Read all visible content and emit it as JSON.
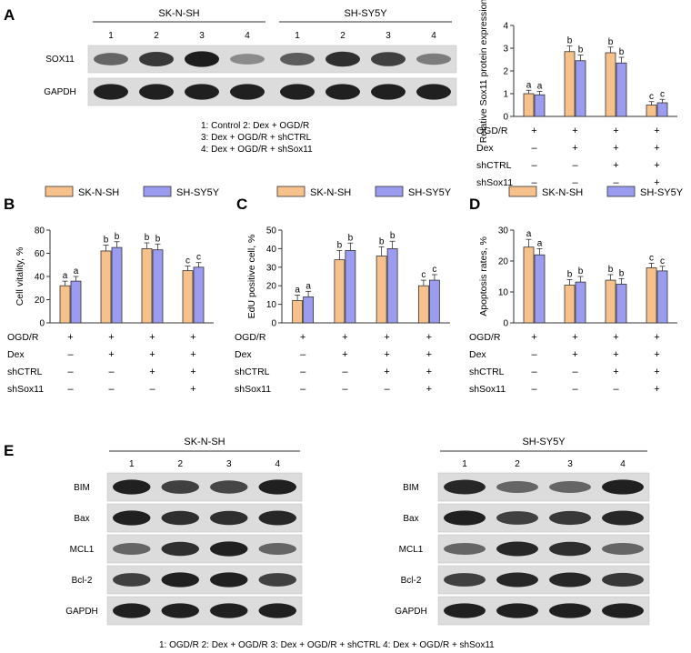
{
  "panels": {
    "A": {
      "letter": "A"
    },
    "B": {
      "letter": "B"
    },
    "C": {
      "letter": "C"
    },
    "D": {
      "letter": "D"
    },
    "E": {
      "letter": "E"
    }
  },
  "blot_A": {
    "cell_lines": [
      "SK-N-SH",
      "SH-SY5Y"
    ],
    "lanes": [
      "1",
      "2",
      "3",
      "4"
    ],
    "rows": [
      "SOX11",
      "GAPDH"
    ],
    "legend_lines": [
      "1: Control     2: Dex + OGD/R",
      "3: Dex + OGD/R + shCTRL",
      "4: Dex + OGD/R + shSox11"
    ],
    "band_intensity": {
      "SOX11": [
        [
          0.45,
          0.75,
          0.92,
          0.2
        ],
        [
          0.5,
          0.8,
          0.7,
          0.3
        ]
      ],
      "GAPDH": [
        [
          0.9,
          0.9,
          0.9,
          0.9
        ],
        [
          0.9,
          0.9,
          0.9,
          0.9
        ]
      ]
    }
  },
  "blot_E": {
    "lanes": [
      "1",
      "2",
      "3",
      "4"
    ],
    "rows": [
      "BIM",
      "Bax",
      "MCL1",
      "Bcl-2",
      "GAPDH"
    ],
    "left_title": "SK-N-SH",
    "right_title": "SH-SY5Y",
    "legend": "1: OGD/R        2: Dex + OGD/R        3: Dex + OGD/R + shCTRL        4: Dex + OGD/R + shSox11",
    "band_intensity": {
      "left": {
        "BIM": [
          0.9,
          0.7,
          0.65,
          0.9
        ],
        "Bax": [
          0.9,
          0.8,
          0.8,
          0.85
        ],
        "MCL1": [
          0.45,
          0.8,
          0.9,
          0.45
        ],
        "Bcl-2": [
          0.7,
          0.9,
          0.9,
          0.7
        ],
        "GAPDH": [
          0.9,
          0.9,
          0.9,
          0.9
        ]
      },
      "right": {
        "BIM": [
          0.85,
          0.45,
          0.45,
          0.9
        ],
        "Bax": [
          0.9,
          0.7,
          0.75,
          0.85
        ],
        "MCL1": [
          0.45,
          0.85,
          0.8,
          0.45
        ],
        "Bcl-2": [
          0.7,
          0.85,
          0.85,
          0.75
        ],
        "GAPDH": [
          0.9,
          0.9,
          0.9,
          0.9
        ]
      }
    }
  },
  "treatment_table": {
    "rows": [
      "OGD/R",
      "Dex",
      "shCTRL",
      "shSox11"
    ],
    "values": [
      [
        "+",
        "+",
        "+",
        "+"
      ],
      [
        "–",
        "+",
        "+",
        "+"
      ],
      [
        "–",
        "–",
        "+",
        "+"
      ],
      [
        "–",
        "–",
        "–",
        "+"
      ]
    ]
  },
  "colors": {
    "sk": "#F7C18B",
    "sh": "#9B9BF0",
    "edge": "#333333"
  },
  "chart_data": [
    {
      "type": "bar",
      "panel": "A",
      "ylabel": "Relative Sox11 protein expression",
      "ylim": [
        0,
        4
      ],
      "yticks": [
        0,
        1,
        2,
        3,
        4
      ],
      "categories": [
        "1",
        "2",
        "3",
        "4"
      ],
      "series": [
        {
          "name": "SK-N-SH",
          "values": [
            1.0,
            2.85,
            2.8,
            0.5
          ],
          "errors": [
            0.15,
            0.25,
            0.25,
            0.15
          ]
        },
        {
          "name": "SH-SY5Y",
          "values": [
            0.95,
            2.45,
            2.35,
            0.6
          ],
          "errors": [
            0.15,
            0.25,
            0.25,
            0.15
          ]
        }
      ],
      "letters": [
        [
          "a",
          "b",
          "b",
          "c"
        ],
        [
          "a",
          "b",
          "b",
          "c"
        ]
      ]
    },
    {
      "type": "bar",
      "panel": "B",
      "ylabel": "Cell vitality, %",
      "ylim": [
        0,
        80
      ],
      "yticks": [
        0,
        20,
        40,
        60,
        80
      ],
      "categories": [
        "1",
        "2",
        "3",
        "4"
      ],
      "series": [
        {
          "name": "SK-N-SH",
          "values": [
            32,
            62,
            64,
            45
          ],
          "errors": [
            4,
            5,
            5,
            4
          ]
        },
        {
          "name": "SH-SY5Y",
          "values": [
            36,
            65,
            63,
            48
          ],
          "errors": [
            4,
            5,
            5,
            4
          ]
        }
      ],
      "letters": [
        [
          "a",
          "b",
          "b",
          "c"
        ],
        [
          "a",
          "b",
          "b",
          "c"
        ]
      ]
    },
    {
      "type": "bar",
      "panel": "C",
      "ylabel": "EdU positive cell, %",
      "ylim": [
        0,
        50
      ],
      "yticks": [
        0,
        10,
        20,
        30,
        40,
        50
      ],
      "categories": [
        "1",
        "2",
        "3",
        "4"
      ],
      "series": [
        {
          "name": "SK-N-SH",
          "values": [
            12,
            34,
            36,
            20
          ],
          "errors": [
            3,
            5,
            5,
            3
          ]
        },
        {
          "name": "SH-SY5Y",
          "values": [
            14,
            39,
            40,
            23
          ],
          "errors": [
            3,
            4,
            4,
            3
          ]
        }
      ],
      "letters": [
        [
          "a",
          "b",
          "b",
          "c"
        ],
        [
          "a",
          "b",
          "b",
          "c"
        ]
      ]
    },
    {
      "type": "bar",
      "panel": "D",
      "ylabel": "Apoptosis rates, %",
      "ylim": [
        0,
        30
      ],
      "yticks": [
        0,
        10,
        20,
        30
      ],
      "categories": [
        "1",
        "2",
        "3",
        "4"
      ],
      "series": [
        {
          "name": "SK-N-SH",
          "values": [
            24.5,
            12.2,
            13.8,
            17.8
          ],
          "errors": [
            2.5,
            1.8,
            1.8,
            1.5
          ]
        },
        {
          "name": "SH-SY5Y",
          "values": [
            22.0,
            13.2,
            12.5,
            16.8
          ],
          "errors": [
            2.0,
            1.8,
            1.8,
            1.5
          ]
        }
      ],
      "letters": [
        [
          "a",
          "b",
          "b",
          "c"
        ],
        [
          "a",
          "b",
          "b",
          "c"
        ]
      ]
    }
  ]
}
